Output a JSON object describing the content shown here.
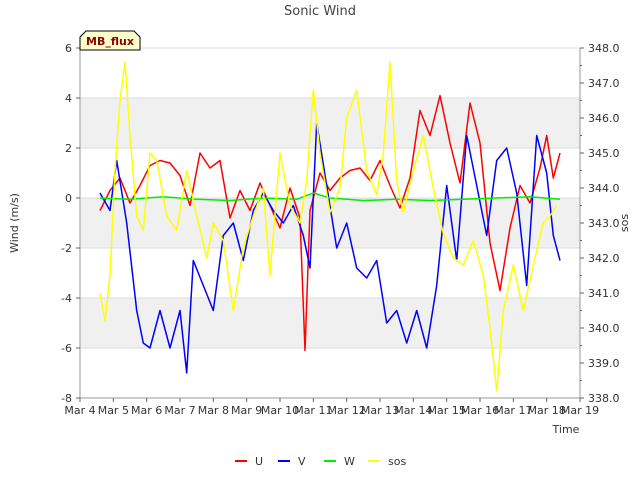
{
  "chart_data": {
    "type": "line",
    "title": "Sonic Wind",
    "xlabel": "Time",
    "ylabel": "Wind (m/s)",
    "y2label": "sos",
    "badge": "MB_flux",
    "x_ticks": [
      "Mar 4",
      "Mar 5",
      "Mar 6",
      "Mar 7",
      "Mar 8",
      "Mar 9",
      "Mar 10",
      "Mar 11",
      "Mar 12",
      "Mar 13",
      "Mar 14",
      "Mar 15",
      "Mar 16",
      "Mar 17",
      "Mar 18",
      "Mar 19"
    ],
    "xlim": [
      4,
      19
    ],
    "ylim": [
      -8,
      6
    ],
    "y_ticks": [
      "6",
      "4",
      "2",
      "0",
      "-2",
      "-4",
      "-6",
      "-8"
    ],
    "y2lim": [
      338.0,
      348.0
    ],
    "y2_ticks": [
      "348.0",
      "347.0",
      "346.0",
      "345.0",
      "344.0",
      "343.0",
      "342.0",
      "341.0",
      "340.0",
      "339.0",
      "338.0"
    ],
    "grid": true,
    "legend_position": "bottom",
    "series": [
      {
        "name": "U",
        "color": "#ff0000",
        "axis": "left",
        "x": [
          4.6,
          4.9,
          5.2,
          5.5,
          5.8,
          6.1,
          6.4,
          6.7,
          7.0,
          7.3,
          7.6,
          7.9,
          8.2,
          8.5,
          8.8,
          9.1,
          9.4,
          9.7,
          10.0,
          10.3,
          10.6,
          10.75,
          10.9,
          11.2,
          11.5,
          11.8,
          12.1,
          12.4,
          12.7,
          13.0,
          13.3,
          13.6,
          13.9,
          14.2,
          14.5,
          14.8,
          15.1,
          15.4,
          15.7,
          16.0,
          16.3,
          16.6,
          16.9,
          17.2,
          17.5,
          17.8,
          18.0,
          18.2,
          18.4
        ],
        "values": [
          -0.5,
          0.3,
          0.8,
          -0.2,
          0.5,
          1.3,
          1.5,
          1.4,
          0.9,
          -0.3,
          1.8,
          1.2,
          1.5,
          -0.8,
          0.3,
          -0.5,
          0.6,
          -0.3,
          -1.2,
          0.4,
          -0.8,
          -6.1,
          -0.5,
          1.0,
          0.3,
          0.8,
          1.1,
          1.2,
          0.7,
          1.5,
          0.5,
          -0.4,
          0.8,
          3.5,
          2.5,
          4.1,
          2.2,
          0.6,
          3.8,
          2.2,
          -1.8,
          -3.7,
          -1.2,
          0.5,
          -0.2,
          1.2,
          2.5,
          0.8,
          1.8
        ]
      },
      {
        "name": "V",
        "color": "#0000ff",
        "axis": "left",
        "x": [
          4.6,
          4.9,
          5.1,
          5.4,
          5.7,
          5.9,
          6.1,
          6.4,
          6.7,
          7.0,
          7.2,
          7.4,
          7.7,
          8.0,
          8.3,
          8.6,
          8.9,
          9.2,
          9.5,
          9.8,
          10.1,
          10.4,
          10.7,
          10.9,
          11.1,
          11.4,
          11.7,
          12.0,
          12.3,
          12.6,
          12.9,
          13.2,
          13.5,
          13.8,
          14.1,
          14.4,
          14.7,
          15.0,
          15.3,
          15.6,
          15.9,
          16.2,
          16.5,
          16.8,
          17.1,
          17.4,
          17.7,
          18.0,
          18.2,
          18.4
        ],
        "values": [
          0.2,
          -0.5,
          1.5,
          -1.0,
          -4.5,
          -5.8,
          -6.0,
          -4.5,
          -6.0,
          -4.5,
          -7.0,
          -2.5,
          -3.5,
          -4.5,
          -1.5,
          -1.0,
          -2.5,
          -0.5,
          0.2,
          -0.5,
          -1.0,
          -0.3,
          -1.5,
          -2.8,
          3.0,
          0.5,
          -2.0,
          -1.0,
          -2.8,
          -3.2,
          -2.5,
          -5.0,
          -4.5,
          -5.8,
          -4.5,
          -6.0,
          -3.5,
          0.5,
          -2.5,
          2.5,
          0.5,
          -1.5,
          1.5,
          2.0,
          0.2,
          -3.5,
          2.5,
          1.0,
          -1.5,
          -2.5
        ]
      },
      {
        "name": "W",
        "color": "#00ee00",
        "axis": "left",
        "x": [
          4.6,
          5.5,
          6.5,
          7.5,
          8.5,
          9.5,
          10.5,
          11.0,
          11.5,
          12.5,
          13.5,
          14.5,
          15.5,
          16.5,
          17.5,
          18.4
        ],
        "values": [
          0.0,
          -0.05,
          0.05,
          -0.05,
          -0.1,
          0.0,
          -0.05,
          0.2,
          0.0,
          -0.1,
          -0.05,
          -0.1,
          -0.05,
          0.0,
          0.05,
          -0.05
        ]
      },
      {
        "name": "sos",
        "color": "#ffff00",
        "axis": "right",
        "x": [
          4.6,
          4.75,
          4.9,
          5.05,
          5.2,
          5.35,
          5.5,
          5.7,
          5.9,
          6.1,
          6.3,
          6.6,
          6.9,
          7.2,
          7.5,
          7.8,
          8.0,
          8.3,
          8.6,
          8.9,
          9.2,
          9.5,
          9.7,
          10.0,
          10.3,
          10.6,
          10.8,
          11.0,
          11.2,
          11.5,
          11.8,
          12.0,
          12.3,
          12.6,
          12.9,
          13.1,
          13.3,
          13.5,
          13.7,
          14.0,
          14.3,
          14.6,
          14.9,
          15.2,
          15.5,
          15.8,
          16.1,
          16.3,
          16.5,
          16.7,
          17.0,
          17.3,
          17.6,
          17.9,
          18.1,
          18.3
        ],
        "values": [
          341.0,
          340.2,
          341.5,
          344.5,
          346.5,
          347.6,
          345.5,
          343.2,
          342.8,
          345.0,
          344.8,
          343.2,
          342.8,
          344.5,
          343.2,
          342.0,
          343.0,
          342.5,
          340.5,
          342.3,
          343.2,
          344.0,
          341.5,
          345.0,
          343.5,
          343.0,
          344.2,
          346.8,
          345.0,
          343.3,
          344.0,
          346.0,
          346.8,
          344.5,
          343.8,
          345.0,
          347.6,
          344.2,
          343.3,
          344.5,
          345.5,
          344.0,
          342.7,
          342.0,
          341.8,
          342.5,
          341.5,
          340.0,
          338.2,
          340.5,
          341.8,
          340.5,
          341.8,
          343.0,
          343.2,
          343.5
        ]
      }
    ]
  }
}
